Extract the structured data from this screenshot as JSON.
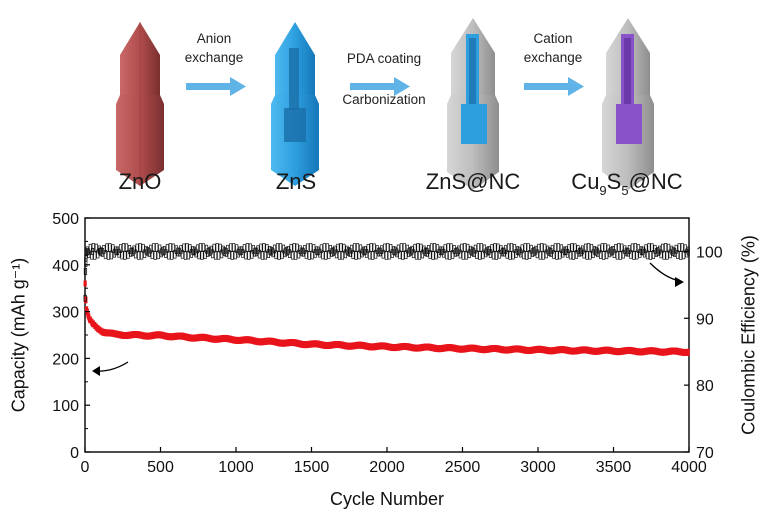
{
  "schematic": {
    "samples": [
      "ZnO",
      "ZnS",
      "ZnS@NC"
    ],
    "final_sample": {
      "prefix": "Cu",
      "sub1": "9",
      "mid": "S",
      "sub2": "5",
      "suffix": "@NC"
    },
    "steps": [
      {
        "line1": "Anion",
        "line2": "exchange"
      },
      {
        "line1": "PDA coating",
        "line2": "Carbonization"
      },
      {
        "line1": "Cation",
        "line2": "exchange"
      }
    ],
    "colors": {
      "zno": "#b85858",
      "zns": "#3aa6e0",
      "shell": "#b8b8b8",
      "cu9s5_core": "#8a52c8",
      "arrow": "#5fb3e6"
    }
  },
  "chart_data": {
    "type": "scatter",
    "xlabel": "Cycle Number",
    "ylabel": "Capacity (mAh g⁻¹)",
    "ylabel_right": "Coulombic Efficiency (%)",
    "xlim": [
      0,
      4000
    ],
    "ylim": [
      0,
      500
    ],
    "ylim_right": [
      70,
      105
    ],
    "xticks": [
      0,
      500,
      1000,
      1500,
      2000,
      2500,
      3000,
      3500,
      4000
    ],
    "yticks": [
      0,
      100,
      200,
      300,
      400,
      500
    ],
    "yticks_right": [
      70,
      80,
      90,
      100
    ],
    "series": [
      {
        "name": "Capacity",
        "axis": "left",
        "color": "#e8141b",
        "x": [
          1,
          5,
          10,
          20,
          30,
          50,
          80,
          120,
          200,
          300,
          400,
          500,
          700,
          1000,
          1200,
          1500,
          2000,
          2500,
          3000,
          3500,
          4000
        ],
        "values": [
          360,
          325,
          305,
          292,
          283,
          274,
          265,
          257,
          251,
          250,
          249,
          249,
          245,
          240,
          236,
          230,
          225,
          221,
          218,
          216,
          214
        ],
        "annotation_arrow": "points-left"
      },
      {
        "name": "Coulombic Efficiency",
        "axis": "right",
        "color": "#111111",
        "x": [
          1,
          3,
          6,
          10,
          20,
          50,
          100,
          500,
          1000,
          1500,
          2000,
          2500,
          3000,
          3500,
          4000
        ],
        "values": [
          93,
          97,
          99,
          99.8,
          100,
          100,
          100,
          100,
          100,
          100,
          100,
          100,
          100,
          100,
          100
        ],
        "annotation_arrow": "points-right"
      }
    ]
  }
}
